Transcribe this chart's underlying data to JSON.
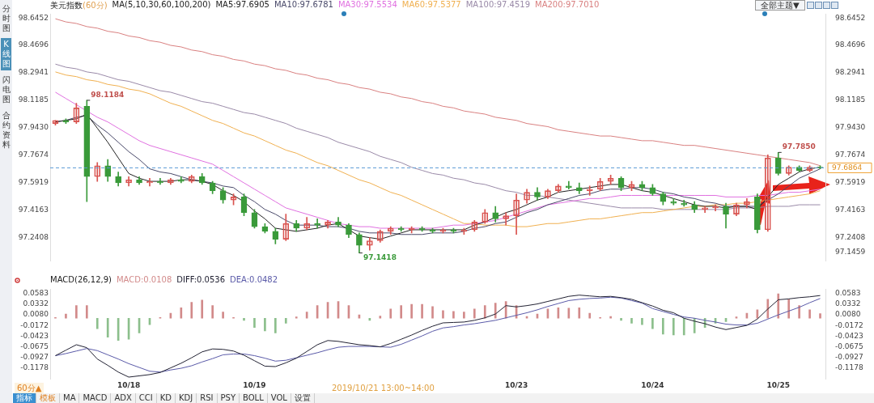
{
  "chart_data": [
    {
      "type": "candlestick",
      "title": "美元指数",
      "subtitle": "(60分)",
      "legend_title": "MA(5,10,30,60,100,200)",
      "legend": "top",
      "tick_labels": "y",
      "categories": [
        null,
        null,
        null,
        null,
        null,
        null,
        null,
        null,
        null,
        null,
        null,
        null,
        null,
        null,
        null,
        null,
        null,
        null,
        null,
        null,
        null,
        null,
        null,
        null,
        null,
        null,
        null,
        null,
        null,
        null,
        null,
        null,
        null,
        null,
        null,
        null,
        null,
        null,
        null,
        null,
        null,
        null,
        null,
        null,
        null,
        null,
        null,
        null,
        null,
        null,
        null,
        null,
        null,
        null,
        null,
        null,
        null,
        null,
        null,
        null,
        null,
        null,
        null,
        null,
        null,
        null,
        null,
        null,
        null,
        null,
        null,
        null,
        null,
        null
      ],
      "ohlc": [
        [
          97.97,
          97.99,
          97.96,
          97.99
        ],
        [
          97.99,
          98.0,
          97.97,
          97.98
        ],
        [
          97.98,
          98.1,
          97.97,
          98.07
        ],
        [
          98.08,
          98.1184,
          97.47,
          97.63
        ],
        [
          97.63,
          97.72,
          97.6,
          97.7
        ],
        [
          97.7,
          97.74,
          97.6,
          97.63
        ],
        [
          97.63,
          97.66,
          97.57,
          97.59
        ],
        [
          97.59,
          97.63,
          97.57,
          97.61
        ],
        [
          97.61,
          97.63,
          97.58,
          97.59
        ],
        [
          97.59,
          97.62,
          97.57,
          97.6
        ],
        [
          97.6,
          97.62,
          97.58,
          97.59
        ],
        [
          97.59,
          97.62,
          97.58,
          97.61
        ],
        [
          97.61,
          97.63,
          97.59,
          97.6
        ],
        [
          97.6,
          97.64,
          97.59,
          97.63
        ],
        [
          97.63,
          97.65,
          97.58,
          97.59
        ],
        [
          97.59,
          97.6,
          97.52,
          97.54
        ],
        [
          97.54,
          97.56,
          97.46,
          97.48
        ],
        [
          97.48,
          97.52,
          97.45,
          97.5
        ],
        [
          97.5,
          97.52,
          97.38,
          97.4
        ],
        [
          97.4,
          97.42,
          97.3,
          97.31
        ],
        [
          97.31,
          97.33,
          97.27,
          97.28
        ],
        [
          97.28,
          97.3,
          97.2,
          97.23
        ],
        [
          97.23,
          97.39,
          97.22,
          97.33
        ],
        [
          97.33,
          97.35,
          97.28,
          97.3
        ],
        [
          97.3,
          97.37,
          97.29,
          97.33
        ],
        [
          97.33,
          97.36,
          97.3,
          97.32
        ],
        [
          97.32,
          97.35,
          97.3,
          97.34
        ],
        [
          97.34,
          97.37,
          97.31,
          97.32
        ],
        [
          97.32,
          97.33,
          97.24,
          97.26
        ],
        [
          97.26,
          97.27,
          97.1418,
          97.19
        ],
        [
          97.19,
          97.24,
          97.16,
          97.22
        ],
        [
          97.22,
          97.29,
          97.21,
          97.28
        ],
        [
          97.28,
          97.31,
          97.26,
          97.3
        ],
        [
          97.3,
          97.31,
          97.28,
          97.29
        ],
        [
          97.29,
          97.31,
          97.27,
          97.3
        ],
        [
          97.3,
          97.31,
          97.28,
          97.29
        ],
        [
          97.29,
          97.3,
          97.27,
          97.28
        ],
        [
          97.28,
          97.3,
          97.27,
          97.29
        ],
        [
          97.29,
          97.3,
          97.27,
          97.28
        ],
        [
          97.28,
          97.3,
          97.26,
          97.29
        ],
        [
          97.29,
          97.35,
          97.28,
          97.34
        ],
        [
          97.34,
          97.42,
          97.33,
          97.4
        ],
        [
          97.4,
          97.44,
          97.34,
          97.36
        ],
        [
          97.36,
          97.4,
          97.32,
          97.38
        ],
        [
          97.38,
          97.52,
          97.26,
          97.48
        ],
        [
          97.48,
          97.55,
          97.46,
          97.53
        ],
        [
          97.53,
          97.56,
          97.48,
          97.5
        ],
        [
          97.5,
          97.55,
          97.49,
          97.54
        ],
        [
          97.54,
          97.58,
          97.53,
          97.57
        ],
        [
          97.57,
          97.6,
          97.55,
          97.56
        ],
        [
          97.56,
          97.59,
          97.52,
          97.54
        ],
        [
          97.54,
          97.57,
          97.51,
          97.55
        ],
        [
          97.55,
          97.62,
          97.54,
          97.6
        ],
        [
          97.6,
          97.64,
          97.58,
          97.62
        ],
        [
          97.62,
          97.63,
          97.54,
          97.56
        ],
        [
          97.56,
          97.6,
          97.54,
          97.58
        ],
        [
          97.58,
          97.6,
          97.54,
          97.56
        ],
        [
          97.56,
          97.58,
          97.51,
          97.52
        ],
        [
          97.52,
          97.53,
          97.45,
          97.47
        ],
        [
          97.47,
          97.49,
          97.45,
          97.46
        ],
        [
          97.46,
          97.48,
          97.44,
          97.45
        ],
        [
          97.45,
          97.47,
          97.4,
          97.42
        ],
        [
          97.42,
          97.44,
          97.4,
          97.43
        ],
        [
          97.43,
          97.45,
          97.41,
          97.44
        ],
        [
          97.44,
          97.46,
          97.3,
          97.39
        ],
        [
          97.39,
          97.46,
          97.38,
          97.45
        ],
        [
          97.45,
          97.49,
          97.43,
          97.47
        ],
        [
          97.5,
          97.52,
          97.27,
          97.29
        ],
        [
          97.29,
          97.77,
          97.28,
          97.75
        ],
        [
          97.75,
          97.785,
          97.64,
          97.65
        ],
        [
          97.65,
          97.7,
          97.64,
          97.69
        ],
        [
          97.69,
          97.7,
          97.66,
          97.67
        ],
        [
          97.67,
          97.7,
          97.66,
          97.69
        ],
        [
          97.69,
          97.7,
          97.68,
          97.6864
        ]
      ],
      "colors": [
        "#d9534f",
        "#3a9a3a",
        "#d9534f",
        "#3a9a3a",
        "#d9534f",
        "#3a9a3a",
        "#3a9a3a",
        "#d9534f",
        "#3a9a3a",
        "#d9534f",
        "#3a9a3a",
        "#d9534f",
        "#3a9a3a",
        "#d9534f",
        "#3a9a3a",
        "#3a9a3a",
        "#3a9a3a",
        "#d9534f",
        "#3a9a3a",
        "#3a9a3a",
        "#3a9a3a",
        "#3a9a3a",
        "#d9534f",
        "#3a9a3a",
        "#d9534f",
        "#3a9a3a",
        "#d9534f",
        "#3a9a3a",
        "#3a9a3a",
        "#3a9a3a",
        "#d9534f",
        "#d9534f",
        "#d9534f",
        "#3a9a3a",
        "#d9534f",
        "#3a9a3a",
        "#3a9a3a",
        "#d9534f",
        "#3a9a3a",
        "#d9534f",
        "#d9534f",
        "#d9534f",
        "#3a9a3a",
        "#d9534f",
        "#d9534f",
        "#d9534f",
        "#3a9a3a",
        "#d9534f",
        "#d9534f",
        "#3a9a3a",
        "#3a9a3a",
        "#d9534f",
        "#d9534f",
        "#d9534f",
        "#3a9a3a",
        "#d9534f",
        "#3a9a3a",
        "#3a9a3a",
        "#3a9a3a",
        "#3a9a3a",
        "#3a9a3a",
        "#3a9a3a",
        "#d9534f",
        "#d9534f",
        "#3a9a3a",
        "#d9534f",
        "#d9534f",
        "#3a9a3a",
        "#d9534f",
        "#3a9a3a",
        "#d9534f",
        "#3a9a3a",
        "#d9534f",
        "#3a9a3a"
      ],
      "series": [
        {
          "type": "line",
          "name": "MA5:97.6905",
          "color": "#222222",
          "values": [
            97.98,
            97.99,
            98.0,
            98.03,
            97.94,
            97.85,
            97.75,
            97.65,
            97.62,
            97.6,
            97.6,
            97.6,
            97.61,
            97.61,
            97.6,
            97.58,
            97.54,
            97.51,
            97.47,
            97.41,
            97.36,
            97.3,
            97.29,
            97.28,
            97.29,
            97.3,
            97.32,
            97.33,
            97.29,
            97.25,
            97.24,
            97.23,
            97.25,
            97.27,
            97.29,
            97.29,
            97.29,
            97.29,
            97.29,
            97.29,
            97.32,
            97.34,
            97.37,
            97.4,
            97.42,
            97.45,
            97.48,
            97.5,
            97.53,
            97.54,
            97.55,
            97.56,
            97.57,
            97.58,
            97.58,
            97.56,
            97.54,
            97.53,
            97.51,
            97.49,
            97.47,
            97.45,
            97.44,
            97.44,
            97.43,
            97.44,
            97.44,
            97.42,
            97.5,
            97.58,
            97.62,
            97.66,
            97.68,
            97.69
          ]
        },
        {
          "type": "line",
          "name": "MA10:97.6781",
          "color": "#4a4a6a",
          "values": [
            97.98,
            97.99,
            98.01,
            98.02,
            97.96,
            97.91,
            97.85,
            97.79,
            97.74,
            97.68,
            97.66,
            97.65,
            97.63,
            97.61,
            97.6,
            97.59,
            97.57,
            97.56,
            97.51,
            97.47,
            97.42,
            97.39,
            97.35,
            97.32,
            97.32,
            97.32,
            97.31,
            97.31,
            97.3,
            97.28,
            97.27,
            97.27,
            97.27,
            97.26,
            97.26,
            97.26,
            97.27,
            97.27,
            97.27,
            97.28,
            97.3,
            97.31,
            97.33,
            97.34,
            97.37,
            97.4,
            97.42,
            97.45,
            97.47,
            97.49,
            97.51,
            97.52,
            97.54,
            97.55,
            97.55,
            97.56,
            97.56,
            97.55,
            97.53,
            97.52,
            97.5,
            97.49,
            97.47,
            97.46,
            97.44,
            97.44,
            97.44,
            97.44,
            97.48,
            97.52,
            97.57,
            97.62,
            97.65,
            97.68
          ]
        },
        {
          "type": "line",
          "name": "MA30:97.5534",
          "color": "#e070e0",
          "values": [
            98.17,
            98.13,
            98.09,
            98.05,
            98.01,
            97.98,
            97.94,
            97.9,
            97.86,
            97.83,
            97.81,
            97.79,
            97.77,
            97.75,
            97.73,
            97.71,
            97.67,
            97.63,
            97.59,
            97.55,
            97.51,
            97.47,
            97.43,
            97.41,
            97.39,
            97.37,
            97.35,
            97.33,
            97.32,
            97.31,
            97.31,
            97.3,
            97.3,
            97.3,
            97.3,
            97.3,
            97.3,
            97.31,
            97.32,
            97.32,
            97.33,
            97.34,
            97.35,
            97.37,
            97.39,
            97.41,
            97.43,
            97.45,
            97.46,
            97.47,
            97.48,
            97.49,
            97.49,
            97.5,
            97.51,
            97.51,
            97.51,
            97.51,
            97.51,
            97.51,
            97.51,
            97.51,
            97.51,
            97.51,
            97.5,
            97.5,
            97.5,
            97.51,
            97.51,
            97.52,
            97.53,
            97.53,
            97.54,
            97.55
          ]
        },
        {
          "type": "line",
          "name": "MA60:97.5377",
          "color": "#f0b050",
          "values": [
            98.3,
            98.28,
            98.27,
            98.25,
            98.24,
            98.22,
            98.21,
            98.19,
            98.18,
            98.16,
            98.13,
            98.1,
            98.08,
            98.05,
            98.02,
            97.99,
            97.97,
            97.94,
            97.91,
            97.89,
            97.86,
            97.83,
            97.8,
            97.78,
            97.75,
            97.72,
            97.7,
            97.67,
            97.64,
            97.61,
            97.59,
            97.56,
            97.53,
            97.51,
            97.48,
            97.45,
            97.42,
            97.39,
            97.36,
            97.33,
            97.33,
            97.32,
            97.32,
            97.32,
            97.31,
            97.31,
            97.32,
            97.33,
            97.33,
            97.34,
            97.35,
            97.36,
            97.36,
            97.37,
            97.38,
            97.39,
            97.4,
            97.4,
            97.41,
            97.42,
            97.43,
            97.44,
            97.44,
            97.45,
            97.45,
            97.46,
            97.46,
            97.47,
            97.48,
            97.49,
            97.5,
            97.51,
            97.52,
            97.54
          ]
        },
        {
          "type": "line",
          "name": "MA100:97.4519",
          "color": "#9a8aa8",
          "values": [
            98.35,
            98.33,
            98.32,
            98.3,
            98.29,
            98.27,
            98.25,
            98.24,
            98.22,
            98.2,
            98.18,
            98.17,
            98.15,
            98.13,
            98.11,
            98.1,
            98.08,
            98.06,
            98.04,
            98.03,
            98.01,
            97.99,
            97.97,
            97.94,
            97.92,
            97.9,
            97.88,
            97.85,
            97.83,
            97.81,
            97.79,
            97.76,
            97.74,
            97.72,
            97.69,
            97.67,
            97.65,
            97.64,
            97.62,
            97.61,
            97.59,
            97.58,
            97.56,
            97.54,
            97.53,
            97.51,
            97.51,
            97.5,
            97.49,
            97.48,
            97.47,
            97.46,
            97.45,
            97.44,
            97.43,
            97.43,
            97.43,
            97.43,
            97.42,
            97.42,
            97.42,
            97.42,
            97.42,
            97.42,
            97.42,
            97.43,
            97.43,
            97.43,
            97.44,
            97.44,
            97.44,
            97.45,
            97.45,
            97.45
          ]
        },
        {
          "type": "line",
          "name": "MA200:97.7010",
          "color": "#d98080",
          "values": [
            98.64,
            98.62,
            98.61,
            98.59,
            98.58,
            98.56,
            98.55,
            98.53,
            98.52,
            98.5,
            98.49,
            98.47,
            98.46,
            98.44,
            98.43,
            98.41,
            98.4,
            98.38,
            98.37,
            98.35,
            98.34,
            98.32,
            98.31,
            98.29,
            98.28,
            98.26,
            98.25,
            98.23,
            98.22,
            98.2,
            98.19,
            98.17,
            98.16,
            98.14,
            98.13,
            98.11,
            98.1,
            98.08,
            98.07,
            98.05,
            98.04,
            98.03,
            98.01,
            98.0,
            97.99,
            97.97,
            97.96,
            97.95,
            97.93,
            97.92,
            97.91,
            97.9,
            97.89,
            97.89,
            97.88,
            97.87,
            97.86,
            97.86,
            97.85,
            97.84,
            97.83,
            97.83,
            97.82,
            97.81,
            97.8,
            97.79,
            97.78,
            97.77,
            97.76,
            97.75,
            97.74,
            97.73,
            97.72,
            97.7
          ]
        }
      ],
      "ylim": [
        97.09,
        98.67
      ],
      "yticks": [
        98.6452,
        98.4696,
        98.2941,
        98.1185,
        {
          "value": 97.943,
          "label": "97.9430"
        },
        97.7674,
        97.5919,
        97.4163,
        97.2408
      ],
      "y2lim": [
        97.09,
        98.67
      ],
      "y2ticks": [
        98.6452,
        98.4696,
        98.2941,
        98.1185,
        {
          "value": 97.943,
          "label": "97.9430"
        },
        97.7674,
        97.5919,
        97.4163,
        97.2408,
        97.1459
      ],
      "ref_lines": [
        {
          "axis": "y",
          "value": 97.6864,
          "label": "97.6864",
          "color": "#5b9bd5",
          "line_style": "dashed"
        }
      ],
      "annotations": [
        "分时图",
        "K线图",
        "闪电图",
        "合约资料",
        "全部主题▼",
        "98.1184",
        "97.1418",
        "97.7850"
      ]
    },
    {
      "type": "line",
      "title": "MACD(26,12,9)",
      "legend": "top left",
      "categories": [
        null,
        null,
        null,
        null,
        null,
        null,
        null,
        "10/18",
        null,
        null,
        null,
        null,
        null,
        null,
        null,
        null,
        null,
        null,
        null,
        "10/19",
        null,
        null,
        null,
        null,
        null,
        null,
        null,
        null,
        null,
        null,
        null,
        null,
        null,
        null,
        null,
        null,
        null,
        null,
        null,
        null,
        null,
        null,
        null,
        null,
        "10/23",
        null,
        null,
        null,
        null,
        null,
        null,
        null,
        null,
        null,
        null,
        null,
        null,
        "10/24",
        null,
        null,
        null,
        null,
        null,
        null,
        null,
        null,
        null,
        null,
        null,
        "10/25",
        null,
        null,
        null,
        null
      ],
      "series": [
        {
          "type": "bar",
          "name": "MACD:0.0108",
          "color": "#d28a8a",
          "values": [
            0.002,
            0.01,
            0.03,
            0.03,
            -0.025,
            -0.045,
            -0.053,
            -0.05,
            -0.035,
            -0.015,
            0.002,
            0.012,
            0.025,
            0.038,
            0.043,
            0.03,
            0.015,
            0.002,
            -0.005,
            -0.022,
            -0.03,
            -0.035,
            -0.012,
            0.003,
            0.015,
            0.03,
            0.038,
            0.04,
            0.03,
            0.008,
            -0.005,
            0.005,
            0.022,
            0.03,
            0.033,
            0.033,
            0.028,
            0.018,
            0.016,
            0.015,
            0.022,
            0.03,
            0.036,
            0.04,
            0.03,
            0.004,
            0.01,
            0.022,
            0.025,
            0.024,
            0.025,
            0.012,
            0.002,
            0.004,
            -0.005,
            -0.012,
            -0.015,
            -0.025,
            -0.038,
            -0.04,
            -0.04,
            -0.035,
            -0.022,
            -0.012,
            -0.008,
            0.003,
            0.012,
            0.02,
            0.045,
            0.058,
            0.045,
            0.03,
            0.02,
            0.011
          ],
          "colors": [
            "#d28a8a",
            "#d28a8a",
            "#d28a8a",
            "#d28a8a",
            "#8cbf8c",
            "#8cbf8c",
            "#8cbf8c",
            "#8cbf8c",
            "#8cbf8c",
            "#8cbf8c",
            "#d28a8a",
            "#d28a8a",
            "#d28a8a",
            "#d28a8a",
            "#d28a8a",
            "#d28a8a",
            "#d28a8a",
            "#d28a8a",
            "#8cbf8c",
            "#8cbf8c",
            "#8cbf8c",
            "#8cbf8c",
            "#8cbf8c",
            "#d28a8a",
            "#d28a8a",
            "#d28a8a",
            "#d28a8a",
            "#d28a8a",
            "#d28a8a",
            "#d28a8a",
            "#8cbf8c",
            "#d28a8a",
            "#d28a8a",
            "#d28a8a",
            "#d28a8a",
            "#d28a8a",
            "#d28a8a",
            "#d28a8a",
            "#d28a8a",
            "#d28a8a",
            "#d28a8a",
            "#d28a8a",
            "#d28a8a",
            "#d28a8a",
            "#d28a8a",
            "#d28a8a",
            "#d28a8a",
            "#d28a8a",
            "#d28a8a",
            "#d28a8a",
            "#d28a8a",
            "#d28a8a",
            "#d28a8a",
            "#d28a8a",
            "#8cbf8c",
            "#8cbf8c",
            "#8cbf8c",
            "#8cbf8c",
            "#8cbf8c",
            "#8cbf8c",
            "#8cbf8c",
            "#8cbf8c",
            "#8cbf8c",
            "#8cbf8c",
            "#8cbf8c",
            "#d28a8a",
            "#d28a8a",
            "#d28a8a",
            "#d28a8a",
            "#d28a8a",
            "#d28a8a",
            "#d28a8a",
            "#d28a8a",
            "#d28a8a"
          ]
        },
        {
          "type": "line",
          "name": "DIFF:0.0536",
          "color": "#222233",
          "values": [
            -0.089,
            -0.076,
            -0.063,
            -0.07,
            -0.097,
            -0.112,
            -0.128,
            -0.14,
            -0.137,
            -0.134,
            -0.129,
            -0.118,
            -0.107,
            -0.094,
            -0.08,
            -0.073,
            -0.074,
            -0.078,
            -0.088,
            -0.101,
            -0.114,
            -0.115,
            -0.106,
            -0.095,
            -0.079,
            -0.063,
            -0.053,
            -0.055,
            -0.059,
            -0.063,
            -0.065,
            -0.068,
            -0.06,
            -0.05,
            -0.04,
            -0.029,
            -0.019,
            -0.011,
            -0.01,
            -0.009,
            -0.005,
            0.001,
            0.01,
            0.03,
            0.027,
            0.03,
            0.034,
            0.04,
            0.046,
            0.052,
            0.055,
            0.053,
            0.051,
            0.052,
            0.049,
            0.045,
            0.037,
            0.029,
            0.019,
            0.013,
            0.0,
            -0.007,
            -0.013,
            -0.021,
            -0.027,
            -0.022,
            -0.017,
            -0.002,
            0.022,
            0.044,
            0.046,
            0.049,
            0.051,
            0.054
          ]
        },
        {
          "type": "line",
          "name": "DEA:0.0482",
          "color": "#5a5aa8",
          "values": [
            -0.089,
            -0.084,
            -0.078,
            -0.072,
            -0.077,
            -0.087,
            -0.097,
            -0.108,
            -0.117,
            -0.126,
            -0.128,
            -0.123,
            -0.119,
            -0.113,
            -0.104,
            -0.096,
            -0.087,
            -0.085,
            -0.085,
            -0.089,
            -0.095,
            -0.102,
            -0.1,
            -0.094,
            -0.088,
            -0.082,
            -0.075,
            -0.069,
            -0.067,
            -0.067,
            -0.067,
            -0.068,
            -0.069,
            -0.062,
            -0.052,
            -0.042,
            -0.031,
            -0.023,
            -0.02,
            -0.016,
            -0.013,
            -0.009,
            -0.005,
            0.001,
            0.007,
            0.013,
            0.02,
            0.028,
            0.035,
            0.042,
            0.045,
            0.047,
            0.048,
            0.05,
            0.048,
            0.042,
            0.036,
            0.023,
            0.016,
            0.009,
            0.003,
            0.0,
            -0.005,
            -0.009,
            -0.014,
            -0.016,
            -0.016,
            -0.012,
            -0.002,
            0.008,
            0.017,
            0.026,
            0.037,
            0.047
          ]
        }
      ],
      "ylim": [
        -0.145,
        0.069
      ],
      "yticks": [
        0.0583,
        0.0332,
        {
          "value": 0.008,
          "label": "0.0080"
        },
        -0.0172,
        -0.0423,
        -0.0675,
        -0.0927,
        -0.1178
      ],
      "y2lim": [
        -0.145,
        0.069
      ],
      "y2ticks": [
        0.0583,
        0.0332,
        {
          "value": 0.008,
          "label": "0.0080"
        },
        -0.0172,
        -0.0423,
        -0.0675,
        -0.0927,
        -0.1178
      ],
      "annotations": [
        "2019/10/21 13:00~14:00",
        "60分▲",
        "指标",
        "模板",
        "MA",
        "MACD",
        "ADX",
        "CCI",
        "KD",
        "KDJ",
        "RSI",
        "PSY",
        "BOLL",
        "VOL",
        "设置"
      ]
    }
  ]
}
